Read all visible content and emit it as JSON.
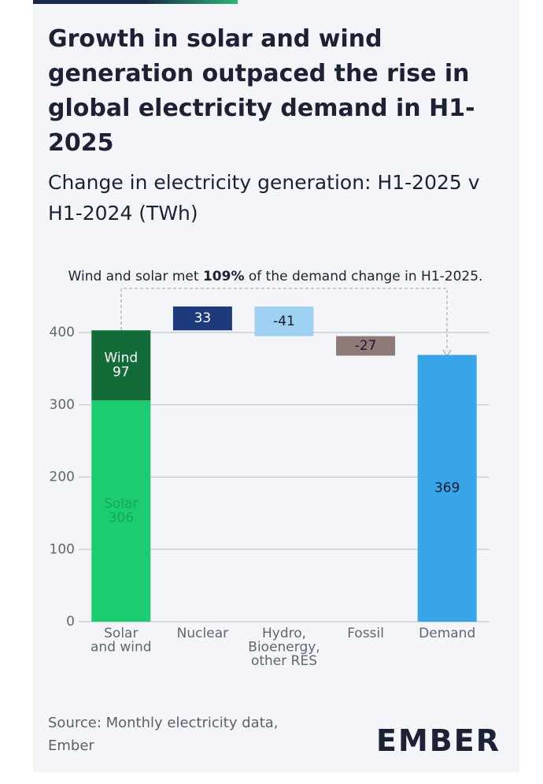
{
  "title": "Growth in solar and wind generation outpaced the rise in global electricity demand in H1-2025",
  "subtitle": "Change in electricity generation: H1-2025 v H1-2024 (TWh)",
  "source": "Source: Monthly electricity data, Ember",
  "logo": "EMBER",
  "chart_data": {
    "type": "waterfall",
    "annotation": [
      "Wind and solar met ",
      "109%",
      " of the demand change in H1-2025."
    ],
    "ylim": [
      0,
      400
    ],
    "yticks": [
      0,
      100,
      200,
      300,
      400
    ],
    "grid": true,
    "steps": [
      {
        "category": [
          "Solar",
          "and wind"
        ],
        "segments": [
          {
            "name": "Solar",
            "value": 306,
            "color": "#1ccc70",
            "label_color": "#16a85a"
          },
          {
            "name": "Wind",
            "value": 97,
            "color": "#136b37",
            "label_color": "#ffffff"
          }
        ]
      },
      {
        "category": [
          "Nuclear"
        ],
        "segments": [
          {
            "value": 33,
            "color": "#1d3b7c",
            "label_color": "#ffffff"
          }
        ]
      },
      {
        "category": [
          "Hydro,",
          "Bioenergy,",
          "other RES"
        ],
        "segments": [
          {
            "value": -41,
            "color": "#9ed0f2",
            "label_color": "#1a1a2e"
          }
        ]
      },
      {
        "category": [
          "Fossil"
        ],
        "segments": [
          {
            "value": -27,
            "color": "#8e7a77",
            "label_color": "#1a1a2e"
          }
        ]
      },
      {
        "category": [
          "Demand"
        ],
        "total": true,
        "segments": [
          {
            "value": 369,
            "color": "#38a5e8",
            "label_color": "#1a1a2e"
          }
        ]
      }
    ]
  }
}
